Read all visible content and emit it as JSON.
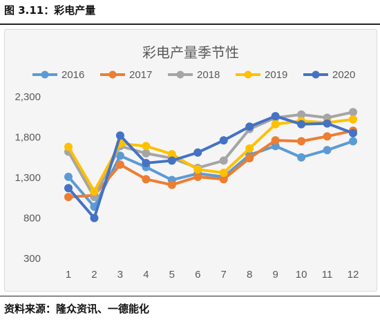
{
  "figure_title": "图 3.11：彩电产量",
  "source_text": "资料来源：隆众资讯、一德能化",
  "chart_data": {
    "type": "line",
    "title": "彩电产量季节性",
    "xlabel": "",
    "ylabel": "",
    "x": [
      "1",
      "2",
      "3",
      "4",
      "5",
      "6",
      "7",
      "8",
      "9",
      "10",
      "11",
      "12"
    ],
    "y_ticks": [
      "300",
      "800",
      "1,300",
      "1,800",
      "2,300"
    ],
    "ylim": [
      300,
      2300
    ],
    "grid": false,
    "legend_position": "top",
    "series": [
      {
        "name": "2016",
        "color": "#5b9bd5",
        "values": [
          1310,
          940,
          1570,
          1430,
          1270,
          1350,
          1310,
          1580,
          1690,
          1550,
          1640,
          1750
        ]
      },
      {
        "name": "2017",
        "color": "#ed7d31",
        "values": [
          1060,
          1080,
          1460,
          1280,
          1210,
          1310,
          1280,
          1540,
          1760,
          1750,
          1810,
          1880
        ]
      },
      {
        "name": "2018",
        "color": "#a5a5a5",
        "values": [
          1620,
          1060,
          1690,
          1600,
          1540,
          1420,
          1510,
          1900,
          2040,
          2080,
          2040,
          2110
        ]
      },
      {
        "name": "2019",
        "color": "#ffc000",
        "values": [
          1680,
          1130,
          1720,
          1690,
          1590,
          1400,
          1360,
          1660,
          1960,
          2000,
          1980,
          2020
        ]
      },
      {
        "name": "2020",
        "color": "#4472c4",
        "values": [
          1170,
          800,
          1820,
          1480,
          1510,
          1610,
          1760,
          1930,
          2060,
          1960,
          1970,
          1850
        ]
      }
    ]
  }
}
